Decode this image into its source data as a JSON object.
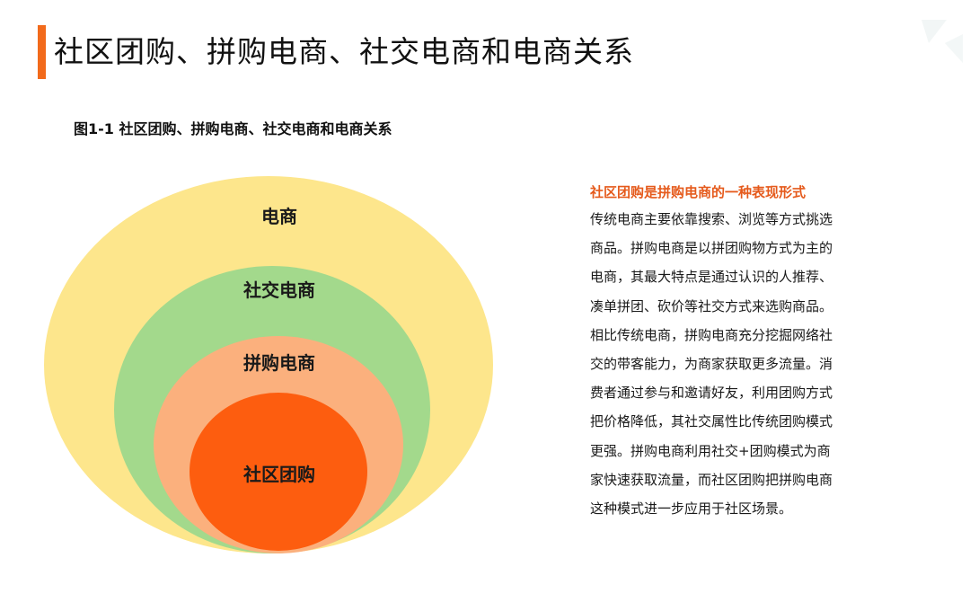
{
  "title": "社区团购、拼购电商、社交电商和电商关系",
  "figure_caption": "图1-1 社区团购、拼购电商、社交电商和电商关系",
  "diagram": {
    "labels": {
      "outer": "电商",
      "second": "社交电商",
      "third": "拼购电商",
      "inner": "社区团购"
    },
    "colors": {
      "outer": "#fde68c",
      "second": "#a3d98c",
      "third": "#fbb07d",
      "inner": "#fd5d0f",
      "accent": "#f26a1b"
    }
  },
  "side": {
    "heading": "社区团购是拼购电商的一种表现形式",
    "lines": [
      "传统电商主要依靠搜索、浏览等方式挑选",
      "商品。拼购电商是以拼团购物方式为主的",
      "电商，其最大特点是通过认识的人推荐、",
      "凑单拼团、砍价等社交方式来选购商品。",
      "相比传统电商，拼购电商充分挖掘网络社",
      "交的带客能力，为商家获取更多流量。消",
      "费者通过参与和邀请好友，利用团购方式",
      "把价格降低，其社交属性比传统团购模式",
      "更强。拼购电商利用社交+团购模式为商",
      "家快速获取流量，而社区团购把拼购电商",
      "这种模式进一步应用于社区场景。"
    ]
  }
}
